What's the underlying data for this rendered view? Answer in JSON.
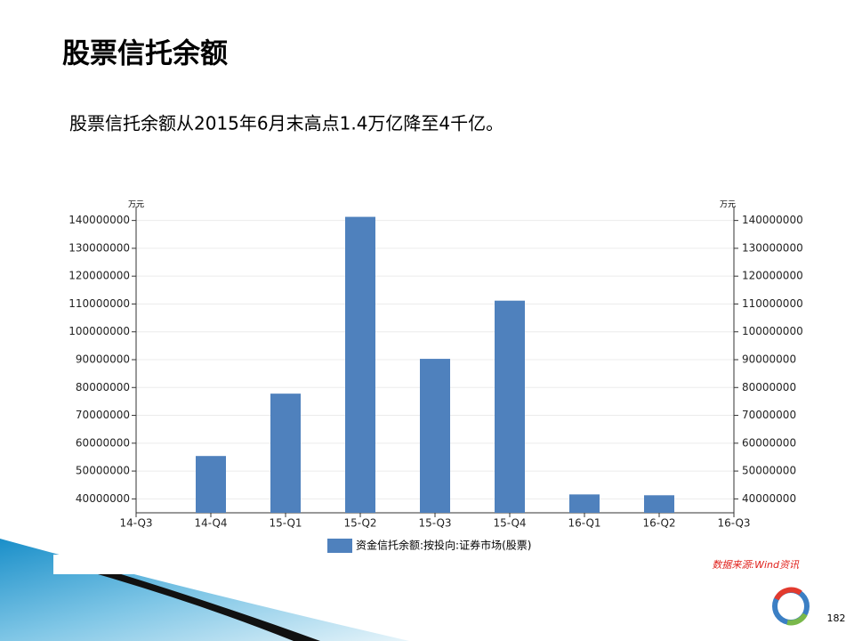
{
  "slide_title": "股票信托余额",
  "subtitle": "股票信托余额从2015年6月末高点1.4万亿降至4千亿。",
  "chart_data": {
    "type": "bar",
    "y_unit": "万元",
    "y2_unit": "万元",
    "categories": [
      "14-Q3",
      "14-Q4",
      "15-Q1",
      "15-Q2",
      "15-Q3",
      "15-Q4",
      "16-Q1",
      "16-Q2",
      "16-Q3"
    ],
    "series": [
      {
        "name": "资金信托余额:按投向:证券市场(股票)",
        "color": "#4f81bd",
        "values": [
          null,
          55400000,
          77800000,
          141300000,
          90300000,
          111200000,
          41600000,
          41300000,
          null
        ]
      }
    ],
    "ylim": [
      35000000,
      145000000
    ],
    "yticks": [
      40000000,
      50000000,
      60000000,
      70000000,
      80000000,
      90000000,
      100000000,
      110000000,
      120000000,
      130000000,
      140000000
    ],
    "y2lim": [
      35000000,
      145000000
    ],
    "y2ticks": [
      40000000,
      50000000,
      60000000,
      70000000,
      80000000,
      90000000,
      100000000,
      110000000,
      120000000,
      130000000,
      140000000
    ],
    "grid": true
  },
  "source": "数据来源:Wind资讯",
  "page_number": "182"
}
